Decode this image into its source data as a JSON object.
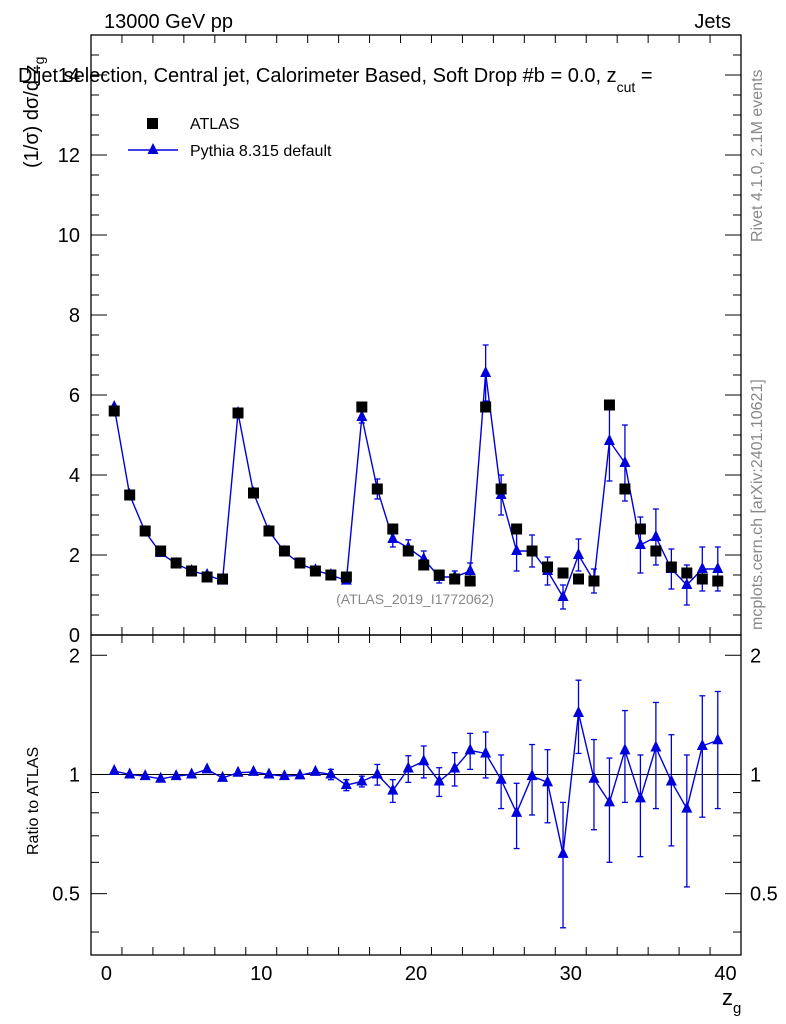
{
  "header": {
    "energy": "13000 GeV pp",
    "category": "Jets",
    "title": "Dijet selection, Central jet, Calorimeter Based, Soft Drop #b = 0.0, z",
    "title_sub": "cut",
    "title_tail": " ="
  },
  "side_text": {
    "rivet": "Rivet 4.1.0,  2.1M events",
    "mcplots": "mcplots.cern.ch [arXiv:2401.10621]"
  },
  "analysis_id": "(ATLAS_2019_I1772062)",
  "legend": {
    "atlas": "ATLAS",
    "pythia": "Pythia 8.315 default"
  },
  "colors": {
    "mc": "#0000dd",
    "data": "#000000",
    "side_text": "#888888"
  },
  "chart_data": [
    {
      "type": "scatter",
      "panel": "main",
      "ylabel": "(1/σ) dσ/d z",
      "ylabel_sub": "g",
      "xlim": [
        -1,
        41
      ],
      "ylim": [
        0,
        15
      ],
      "yticks": [
        0,
        2,
        4,
        6,
        8,
        10,
        12,
        14
      ],
      "x": [
        0.5,
        1.5,
        2.5,
        3.5,
        4.5,
        5.5,
        6.5,
        7.5,
        8.5,
        9.5,
        10.5,
        11.5,
        12.5,
        13.5,
        14.5,
        15.5,
        16.5,
        17.5,
        18.5,
        19.5,
        20.5,
        21.5,
        22.5,
        23.5,
        24.5,
        25.5,
        26.5,
        27.5,
        28.5,
        29.5,
        30.5,
        31.5,
        32.5,
        33.5,
        34.5,
        35.5,
        36.5,
        37.5,
        38.5,
        39.5
      ],
      "series": [
        {
          "name": "ATLAS",
          "marker": "square",
          "values": [
            5.6,
            3.5,
            2.6,
            2.1,
            1.8,
            1.6,
            1.45,
            1.4,
            5.55,
            3.55,
            2.6,
            2.1,
            1.8,
            1.6,
            1.5,
            1.45,
            5.7,
            3.65,
            2.65,
            2.1,
            1.75,
            1.5,
            1.4,
            1.35,
            5.7,
            3.65,
            2.65,
            2.1,
            1.7,
            1.55,
            1.4,
            1.35,
            5.75,
            3.65,
            2.65,
            2.1,
            1.7,
            1.55,
            1.4,
            1.35
          ]
        },
        {
          "name": "Pythia 8.315 default",
          "marker": "triangle",
          "values": [
            5.7,
            3.5,
            2.58,
            2.05,
            1.78,
            1.6,
            1.5,
            1.36,
            5.55,
            3.55,
            2.6,
            2.08,
            1.78,
            1.62,
            1.5,
            1.36,
            5.45,
            3.65,
            2.4,
            2.18,
            1.9,
            1.45,
            1.45,
            1.6,
            6.55,
            3.5,
            2.1,
            2.1,
            1.6,
            0.95,
            2.0,
            1.35,
            4.85,
            4.3,
            2.25,
            2.45,
            1.65,
            1.25,
            1.65,
            1.65
          ],
          "errors": [
            0.05,
            0.06,
            0.06,
            0.05,
            0.05,
            0.05,
            0.05,
            0.06,
            0.1,
            0.08,
            0.07,
            0.06,
            0.06,
            0.05,
            0.05,
            0.06,
            0.15,
            0.25,
            0.2,
            0.2,
            0.2,
            0.15,
            0.15,
            0.2,
            0.7,
            0.5,
            0.5,
            0.4,
            0.35,
            0.3,
            0.4,
            0.3,
            1.0,
            0.95,
            0.7,
            0.7,
            0.5,
            0.5,
            0.55,
            0.55
          ]
        }
      ]
    },
    {
      "type": "line",
      "panel": "ratio",
      "xlabel": "z",
      "xlabel_sub": "g",
      "ylabel": "Ratio to ATLAS",
      "xlim": [
        -1,
        41
      ],
      "ylim": [
        0.35,
        2.25
      ],
      "yticks": [
        0.5,
        1,
        2
      ],
      "xticks": [
        0,
        10,
        20,
        30,
        40
      ],
      "reference_line": 1,
      "x": [
        0.5,
        1.5,
        2.5,
        3.5,
        4.5,
        5.5,
        6.5,
        7.5,
        8.5,
        9.5,
        10.5,
        11.5,
        12.5,
        13.5,
        14.5,
        15.5,
        16.5,
        17.5,
        18.5,
        19.5,
        20.5,
        21.5,
        22.5,
        23.5,
        24.5,
        25.5,
        26.5,
        27.5,
        28.5,
        29.5,
        30.5,
        31.5,
        32.5,
        33.5,
        34.5,
        35.5,
        36.5,
        37.5,
        38.5,
        39.5
      ],
      "values": [
        1.02,
        1.0,
        0.99,
        0.975,
        0.99,
        1.0,
        1.03,
        0.98,
        1.01,
        1.015,
        1.0,
        0.99,
        0.995,
        1.015,
        1.0,
        0.94,
        0.96,
        1.0,
        0.91,
        1.035,
        1.08,
        0.96,
        1.035,
        1.15,
        1.13,
        0.97,
        0.8,
        0.99,
        0.955,
        0.63,
        1.43,
        0.975,
        0.85,
        1.15,
        0.87,
        1.17,
        0.96,
        0.82,
        1.18,
        1.22
      ],
      "errors": [
        0.01,
        0.012,
        0.012,
        0.01,
        0.012,
        0.012,
        0.012,
        0.012,
        0.012,
        0.012,
        0.012,
        0.015,
        0.015,
        0.02,
        0.03,
        0.03,
        0.03,
        0.06,
        0.06,
        0.08,
        0.1,
        0.08,
        0.1,
        0.12,
        0.15,
        0.15,
        0.15,
        0.2,
        0.2,
        0.22,
        0.3,
        0.25,
        0.25,
        0.3,
        0.25,
        0.35,
        0.3,
        0.3,
        0.4,
        0.4
      ]
    }
  ]
}
